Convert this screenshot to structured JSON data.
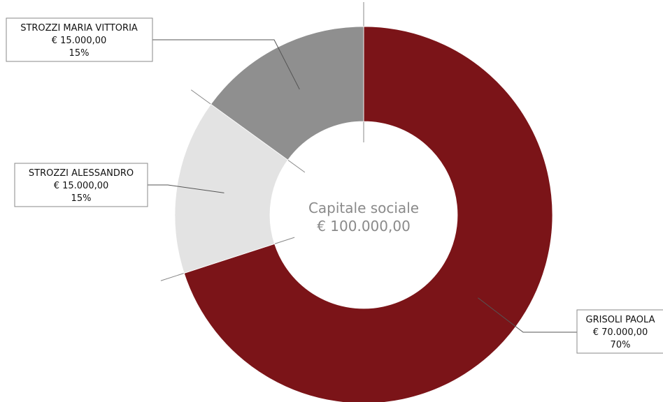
{
  "chart_data": {
    "type": "pie",
    "variant": "donut",
    "center_label": [
      "Capitale sociale",
      "€ 100.000,00"
    ],
    "slices": [
      {
        "name": "GRISOLI PAOLA",
        "amount": "€ 70.000,00",
        "percent_label": "70%",
        "value": 70,
        "color": "#7b1418"
      },
      {
        "name": "STROZZI ALESSANDRO",
        "amount": "€ 15.000,00",
        "percent_label": "15%",
        "value": 15,
        "color": "#e3e3e3"
      },
      {
        "name": "STROZZI MARIA VITTORIA",
        "amount": "€ 15.000,00",
        "percent_label": "15%",
        "value": 15,
        "color": "#8f8f8f"
      }
    ]
  }
}
